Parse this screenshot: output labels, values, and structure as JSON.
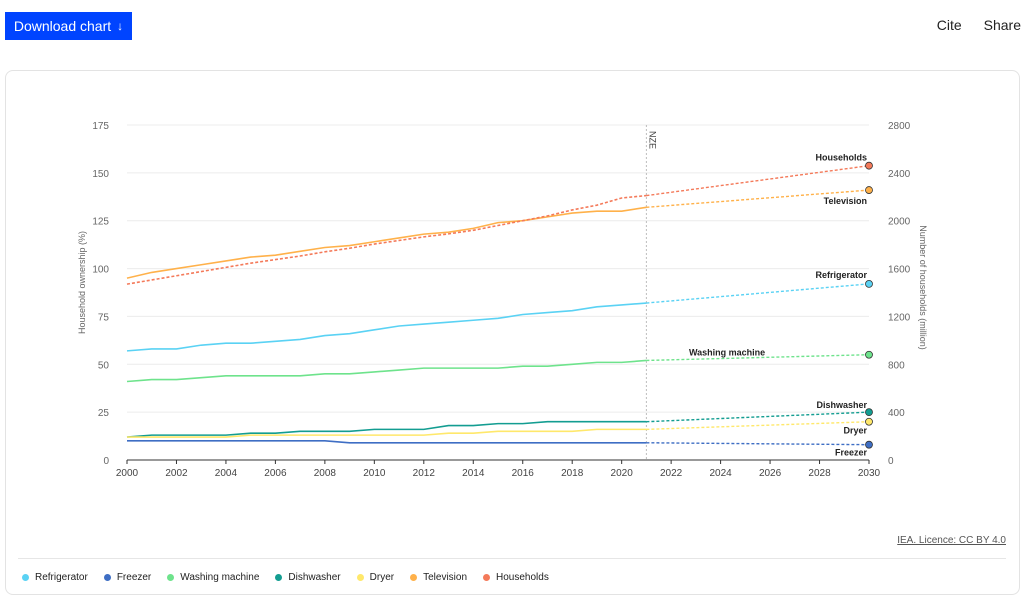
{
  "toolbar": {
    "download_label": "Download chart",
    "download_arrow": "↓",
    "cite_label": "Cite",
    "share_label": "Share"
  },
  "licence_label": "IEA. Licence: CC BY 4.0",
  "colors": {
    "Refrigerator": "#5ad2f4",
    "Freezer": "#3e6ec4",
    "Washing machine": "#6ee38c",
    "Dishwasher": "#139d91",
    "Dryer": "#ffe86b",
    "Television": "#ffb14a",
    "Households": "#f47a5a"
  },
  "chart_data": {
    "type": "line",
    "xlabel": "",
    "ylabel": "Household ownership (%)",
    "y2label": "Number of households (million)",
    "xlim": [
      2000,
      2030
    ],
    "ylim": [
      0,
      175
    ],
    "y2lim": [
      0,
      2800
    ],
    "x_ticks": [
      "2000",
      "2002",
      "2004",
      "2006",
      "2008",
      "2010",
      "2012",
      "2014",
      "2016",
      "2018",
      "2020",
      "2022",
      "2024",
      "2026",
      "2028",
      "2030"
    ],
    "y_ticks": [
      "0",
      "25",
      "50",
      "75",
      "100",
      "125",
      "150",
      "175"
    ],
    "y2_ticks": [
      "0",
      "400",
      "800",
      "1200",
      "1600",
      "2000",
      "2400",
      "2800"
    ],
    "grid": "horizontal",
    "marker_label": "NZE",
    "marker_x": 2021,
    "legend_placement": "bottom",
    "x_hist": [
      2000,
      2001,
      2002,
      2003,
      2004,
      2005,
      2006,
      2007,
      2008,
      2009,
      2010,
      2011,
      2012,
      2013,
      2014,
      2015,
      2016,
      2017,
      2018,
      2019,
      2020,
      2021
    ],
    "series": [
      {
        "name": "Refrigerator",
        "axis": "left",
        "historical": [
          57,
          58,
          58,
          60,
          61,
          61,
          62,
          63,
          65,
          66,
          68,
          70,
          71,
          72,
          73,
          74,
          76,
          77,
          78,
          80,
          81,
          82
        ],
        "end_value": 92
      },
      {
        "name": "Freezer",
        "axis": "left",
        "historical": [
          10,
          10,
          10,
          10,
          10,
          10,
          10,
          10,
          10,
          9,
          9,
          9,
          9,
          9,
          9,
          9,
          9,
          9,
          9,
          9,
          9,
          9
        ],
        "end_value": 8
      },
      {
        "name": "Washing machine",
        "axis": "left",
        "historical": [
          41,
          42,
          42,
          43,
          44,
          44,
          44,
          44,
          45,
          45,
          46,
          47,
          48,
          48,
          48,
          48,
          49,
          49,
          50,
          51,
          51,
          52
        ],
        "end_value": 55
      },
      {
        "name": "Dishwasher",
        "axis": "left",
        "historical": [
          12,
          13,
          13,
          13,
          13,
          14,
          14,
          15,
          15,
          15,
          16,
          16,
          16,
          18,
          18,
          19,
          19,
          20,
          20,
          20,
          20,
          20
        ],
        "end_value": 25
      },
      {
        "name": "Dryer",
        "axis": "left",
        "historical": [
          12,
          12,
          12,
          12,
          12,
          13,
          13,
          13,
          13,
          13,
          13,
          13,
          13,
          14,
          14,
          15,
          15,
          15,
          15,
          16,
          16,
          16
        ],
        "end_value": 20
      },
      {
        "name": "Television",
        "axis": "left",
        "historical": [
          95,
          98,
          100,
          102,
          104,
          106,
          107,
          109,
          111,
          112,
          114,
          116,
          118,
          119,
          121,
          124,
          125,
          127,
          129,
          130,
          130,
          132
        ],
        "end_value": 141
      },
      {
        "name": "Households",
        "axis": "right",
        "historical": [
          1470,
          1505,
          1540,
          1575,
          1610,
          1645,
          1675,
          1705,
          1740,
          1770,
          1805,
          1835,
          1865,
          1890,
          1920,
          1960,
          2000,
          2040,
          2090,
          2130,
          2190,
          2210
        ],
        "end_value": 2460
      }
    ],
    "end_labels": [
      {
        "series": "Households",
        "text": "Households"
      },
      {
        "series": "Television",
        "text": "Television"
      },
      {
        "series": "Refrigerator",
        "text": "Refrigerator"
      },
      {
        "series": "Washing machine",
        "text": "Washing machine"
      },
      {
        "series": "Dishwasher",
        "text": "Dishwasher"
      },
      {
        "series": "Dryer",
        "text": "Dryer"
      },
      {
        "series": "Freezer",
        "text": "Freezer"
      }
    ]
  },
  "legend": [
    {
      "label": "Refrigerator",
      "color": "#5ad2f4"
    },
    {
      "label": "Freezer",
      "color": "#3e6ec4"
    },
    {
      "label": "Washing machine",
      "color": "#6ee38c"
    },
    {
      "label": "Dishwasher",
      "color": "#139d91"
    },
    {
      "label": "Dryer",
      "color": "#ffe86b"
    },
    {
      "label": "Television",
      "color": "#ffb14a"
    },
    {
      "label": "Households",
      "color": "#f47a5a"
    }
  ]
}
